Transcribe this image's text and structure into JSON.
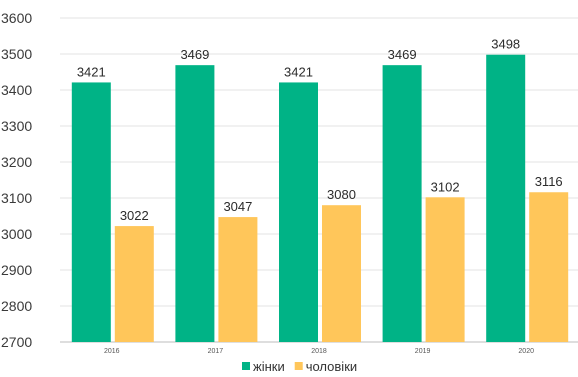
{
  "chart_data": {
    "type": "bar",
    "title": "",
    "xlabel": "",
    "ylabel": "",
    "categories": [
      "2016",
      "2017",
      "2018",
      "2019",
      "2020"
    ],
    "series": [
      {
        "name": "жінки",
        "color": "#00b386",
        "values": [
          3421,
          3469,
          3421,
          3469,
          3498
        ]
      },
      {
        "name": "чоловіки",
        "color": "#ffc65a",
        "values": [
          3022,
          3047,
          3080,
          3102,
          3116
        ]
      }
    ],
    "ylim": [
      2700,
      3600
    ],
    "yticks": [
      2700,
      2800,
      2900,
      3000,
      3100,
      3200,
      3300,
      3400,
      3500,
      3600
    ],
    "grid": true,
    "legend": "bottom-center",
    "data_labels": true
  }
}
